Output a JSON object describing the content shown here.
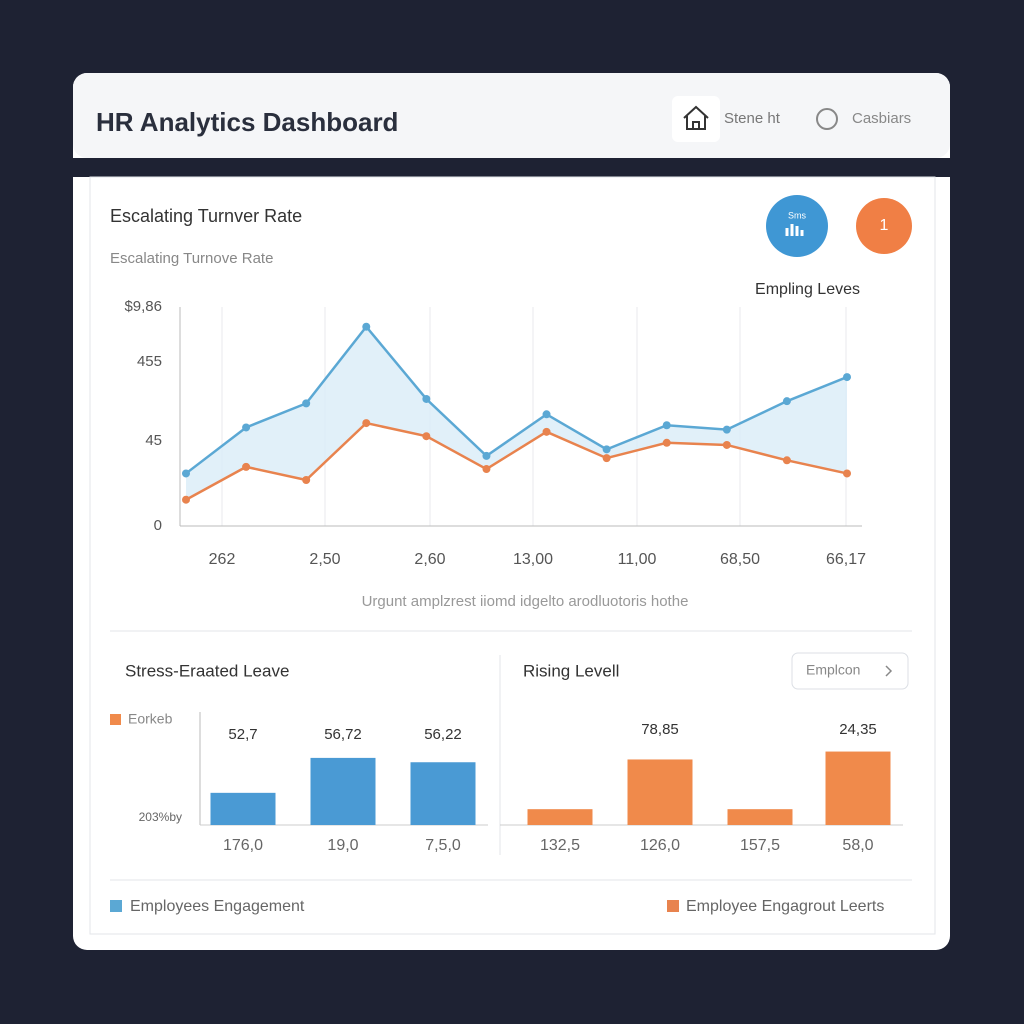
{
  "header": {
    "title": "HR Analytics Dashboard",
    "nav": [
      "Stene ht",
      "Casbiars"
    ]
  },
  "badges": [
    "Sms",
    "1"
  ],
  "chart_data": [
    {
      "type": "line",
      "title": "Escalating Turnver Rate",
      "subtitle": "Escalating Turnove Rate",
      "label": "Empling Leves",
      "ylabels": [
        "$9,86",
        "455",
        "45",
        "0"
      ],
      "xlabels": [
        "262",
        "2,50",
        "2,60",
        "13,00",
        "11,00",
        "68,50",
        "66,17"
      ],
      "caption": "Urgunt amplzrest iiomd idgelto arodluotoris hothe",
      "ylim": [
        0,
        100
      ],
      "grid": true,
      "series": [
        {
          "name": "Employees Engagement",
          "color": "#5ba8d4",
          "values": [
            24,
            45,
            56,
            91,
            58,
            32,
            51,
            35,
            46,
            44,
            57,
            68
          ]
        },
        {
          "name": "Employee Engagrout Leerts",
          "color": "#e8834e",
          "values": [
            12,
            27,
            21,
            47,
            41,
            26,
            43,
            31,
            38,
            37,
            30,
            24
          ]
        }
      ]
    },
    {
      "type": "bar",
      "title": "Stress-Eraated Leave",
      "legend": "Eorkeb",
      "ylabel": "203%by",
      "categories": [
        "176,0",
        "19,0",
        "7,5,0"
      ],
      "values": [
        52.7,
        56.72,
        56.22
      ],
      "value_labels": [
        "52,7",
        "56,72",
        "56,22"
      ],
      "ylim": [
        49,
        62
      ],
      "color": "#4a9ad4"
    },
    {
      "type": "bar",
      "title": "Rising Levell",
      "button": "Emplcon",
      "categories": [
        "132,5",
        "126,0",
        "157,5",
        "58,0"
      ],
      "values": [
        14,
        58,
        14,
        65
      ],
      "annotations": [
        "78,85",
        "24,35"
      ],
      "ylim": [
        0,
        100
      ],
      "color": "#f08a4b"
    }
  ]
}
